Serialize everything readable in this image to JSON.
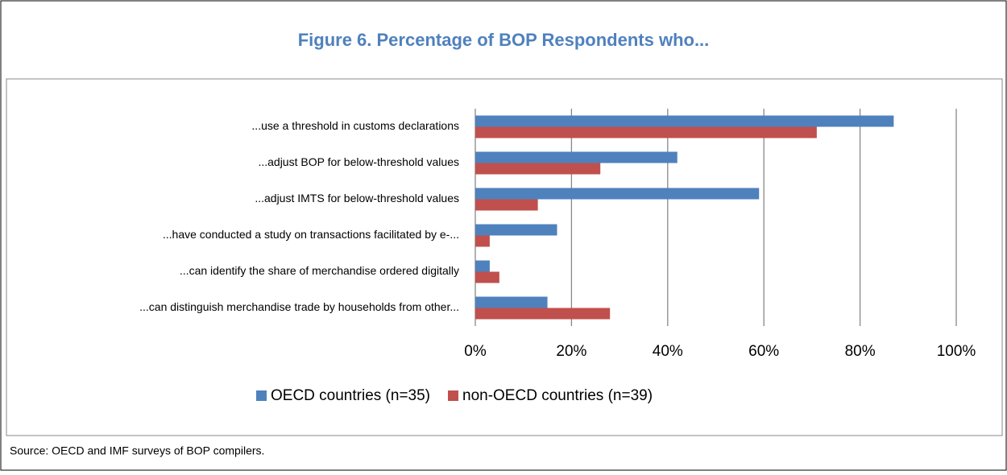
{
  "chart_data": {
    "type": "bar",
    "orientation": "horizontal",
    "title": "Figure 6. Percentage of BOP Respondents who...",
    "categories": [
      "...use a threshold in customs declarations",
      "...adjust BOP for below-threshold values",
      "...adjust IMTS for below-threshold values",
      "...have conducted a study on transactions facilitated by e-...",
      "...can identify the share of merchandise ordered digitally",
      "...can distinguish merchandise trade by households from other..."
    ],
    "series": [
      {
        "name": "OECD countries (n=35)",
        "color": "#4f81bd",
        "values": [
          87,
          42,
          59,
          17,
          3,
          15
        ]
      },
      {
        "name": "non-OECD countries (n=39)",
        "color": "#c0504d",
        "values": [
          71,
          26,
          13,
          3,
          5,
          28
        ]
      }
    ],
    "xlim": [
      0,
      100
    ],
    "xticks": [
      {
        "value": 0,
        "label": "0%"
      },
      {
        "value": 20,
        "label": "20%"
      },
      {
        "value": 40,
        "label": "40%"
      },
      {
        "value": 60,
        "label": "60%"
      },
      {
        "value": 80,
        "label": "80%"
      },
      {
        "value": 100,
        "label": "100%"
      }
    ],
    "grid": true,
    "legend": "bottom",
    "source": "Source: OECD and IMF surveys of BOP compilers."
  }
}
